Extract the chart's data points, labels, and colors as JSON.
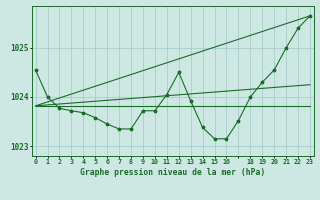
{
  "bg_color": "#cde8e2",
  "grid_color": "#a8cccc",
  "line_color": "#1a6b2a",
  "title": "Graphe pression niveau de la mer (hPa)",
  "ylabel_ticks": [
    1023,
    1024,
    1025
  ],
  "x_tick_labels": [
    "0",
    "1",
    "2",
    "3",
    "4",
    "5",
    "6",
    "7",
    "8",
    "9",
    "10",
    "11",
    "12",
    "13",
    "14",
    "15",
    "16",
    "",
    "18",
    "19",
    "20",
    "21",
    "22",
    "23"
  ],
  "series_main": [
    1024.55,
    1024.0,
    1023.77,
    1023.72,
    1023.68,
    1023.58,
    1023.45,
    1023.35,
    1023.35,
    1023.72,
    1023.72,
    1024.05,
    1024.5,
    1023.92,
    1023.38,
    1023.15,
    1023.15,
    1023.52,
    1024.0,
    1024.3,
    1024.55,
    1025.0,
    1025.4,
    1025.65
  ],
  "series_line1_x": [
    0,
    23
  ],
  "series_line1_y": [
    1023.82,
    1023.82
  ],
  "series_line2_x": [
    0,
    23
  ],
  "series_line2_y": [
    1023.82,
    1024.25
  ],
  "series_line3_x": [
    0,
    23
  ],
  "series_line3_y": [
    1023.82,
    1025.65
  ],
  "ylim": [
    1022.8,
    1025.85
  ],
  "xlim": [
    -0.3,
    23.3
  ]
}
